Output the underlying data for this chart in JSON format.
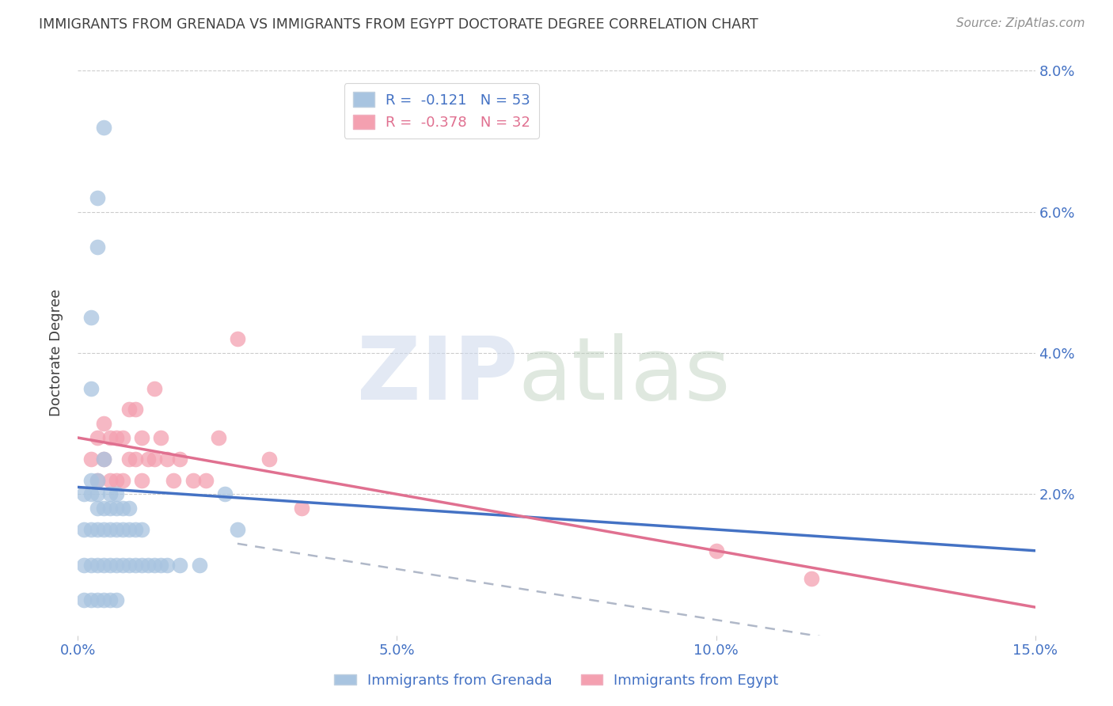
{
  "title": "IMMIGRANTS FROM GRENADA VS IMMIGRANTS FROM EGYPT DOCTORATE DEGREE CORRELATION CHART",
  "source": "Source: ZipAtlas.com",
  "ylabel": "Doctorate Degree",
  "legend_grenada": "Immigrants from Grenada",
  "legend_egypt": "Immigrants from Egypt",
  "R_grenada": -0.121,
  "N_grenada": 53,
  "R_egypt": -0.378,
  "N_egypt": 32,
  "xlim": [
    0.0,
    0.15
  ],
  "ylim": [
    0.0,
    0.08
  ],
  "xtick_vals": [
    0.0,
    0.05,
    0.1,
    0.15
  ],
  "xtick_labels": [
    "0.0%",
    "5.0%",
    "10.0%",
    "15.0%"
  ],
  "ytick_vals": [
    0.0,
    0.02,
    0.04,
    0.06,
    0.08
  ],
  "ytick_labels_right": [
    "",
    "2.0%",
    "4.0%",
    "6.0%",
    "8.0%"
  ],
  "color_grenada": "#a8c4e0",
  "color_egypt": "#f4a0b0",
  "color_trendline_grenada": "#4472c4",
  "color_trendline_egypt": "#e07090",
  "color_axis_text": "#4472c4",
  "color_title": "#404040",
  "color_source": "#909090",
  "grenada_trendline": [
    0.0,
    0.021,
    0.15,
    0.012
  ],
  "egypt_trendline": [
    0.0,
    0.028,
    0.15,
    0.004
  ],
  "dashed_line": [
    0.025,
    0.013,
    0.15,
    -0.005
  ],
  "grenada_x": [
    0.001,
    0.001,
    0.001,
    0.001,
    0.002,
    0.002,
    0.002,
    0.002,
    0.002,
    0.003,
    0.003,
    0.003,
    0.003,
    0.003,
    0.003,
    0.004,
    0.004,
    0.004,
    0.004,
    0.004,
    0.005,
    0.005,
    0.005,
    0.005,
    0.005,
    0.006,
    0.006,
    0.006,
    0.006,
    0.006,
    0.007,
    0.007,
    0.007,
    0.008,
    0.008,
    0.008,
    0.009,
    0.009,
    0.01,
    0.01,
    0.011,
    0.012,
    0.013,
    0.014,
    0.016,
    0.019,
    0.023,
    0.025,
    0.003,
    0.004,
    0.002,
    0.002,
    0.003
  ],
  "grenada_y": [
    0.005,
    0.01,
    0.015,
    0.02,
    0.005,
    0.01,
    0.015,
    0.02,
    0.022,
    0.005,
    0.01,
    0.015,
    0.018,
    0.02,
    0.022,
    0.005,
    0.01,
    0.015,
    0.018,
    0.025,
    0.005,
    0.01,
    0.015,
    0.018,
    0.02,
    0.005,
    0.01,
    0.015,
    0.018,
    0.02,
    0.01,
    0.015,
    0.018,
    0.01,
    0.015,
    0.018,
    0.01,
    0.015,
    0.01,
    0.015,
    0.01,
    0.01,
    0.01,
    0.01,
    0.01,
    0.01,
    0.02,
    0.015,
    0.062,
    0.072,
    0.035,
    0.045,
    0.055
  ],
  "egypt_x": [
    0.002,
    0.003,
    0.003,
    0.004,
    0.004,
    0.005,
    0.005,
    0.006,
    0.006,
    0.007,
    0.007,
    0.008,
    0.008,
    0.009,
    0.009,
    0.01,
    0.01,
    0.011,
    0.012,
    0.012,
    0.013,
    0.014,
    0.015,
    0.016,
    0.018,
    0.02,
    0.022,
    0.025,
    0.03,
    0.035,
    0.1,
    0.115
  ],
  "egypt_y": [
    0.025,
    0.022,
    0.028,
    0.025,
    0.03,
    0.022,
    0.028,
    0.022,
    0.028,
    0.022,
    0.028,
    0.025,
    0.032,
    0.025,
    0.032,
    0.022,
    0.028,
    0.025,
    0.025,
    0.035,
    0.028,
    0.025,
    0.022,
    0.025,
    0.022,
    0.022,
    0.028,
    0.042,
    0.025,
    0.018,
    0.012,
    0.008
  ]
}
